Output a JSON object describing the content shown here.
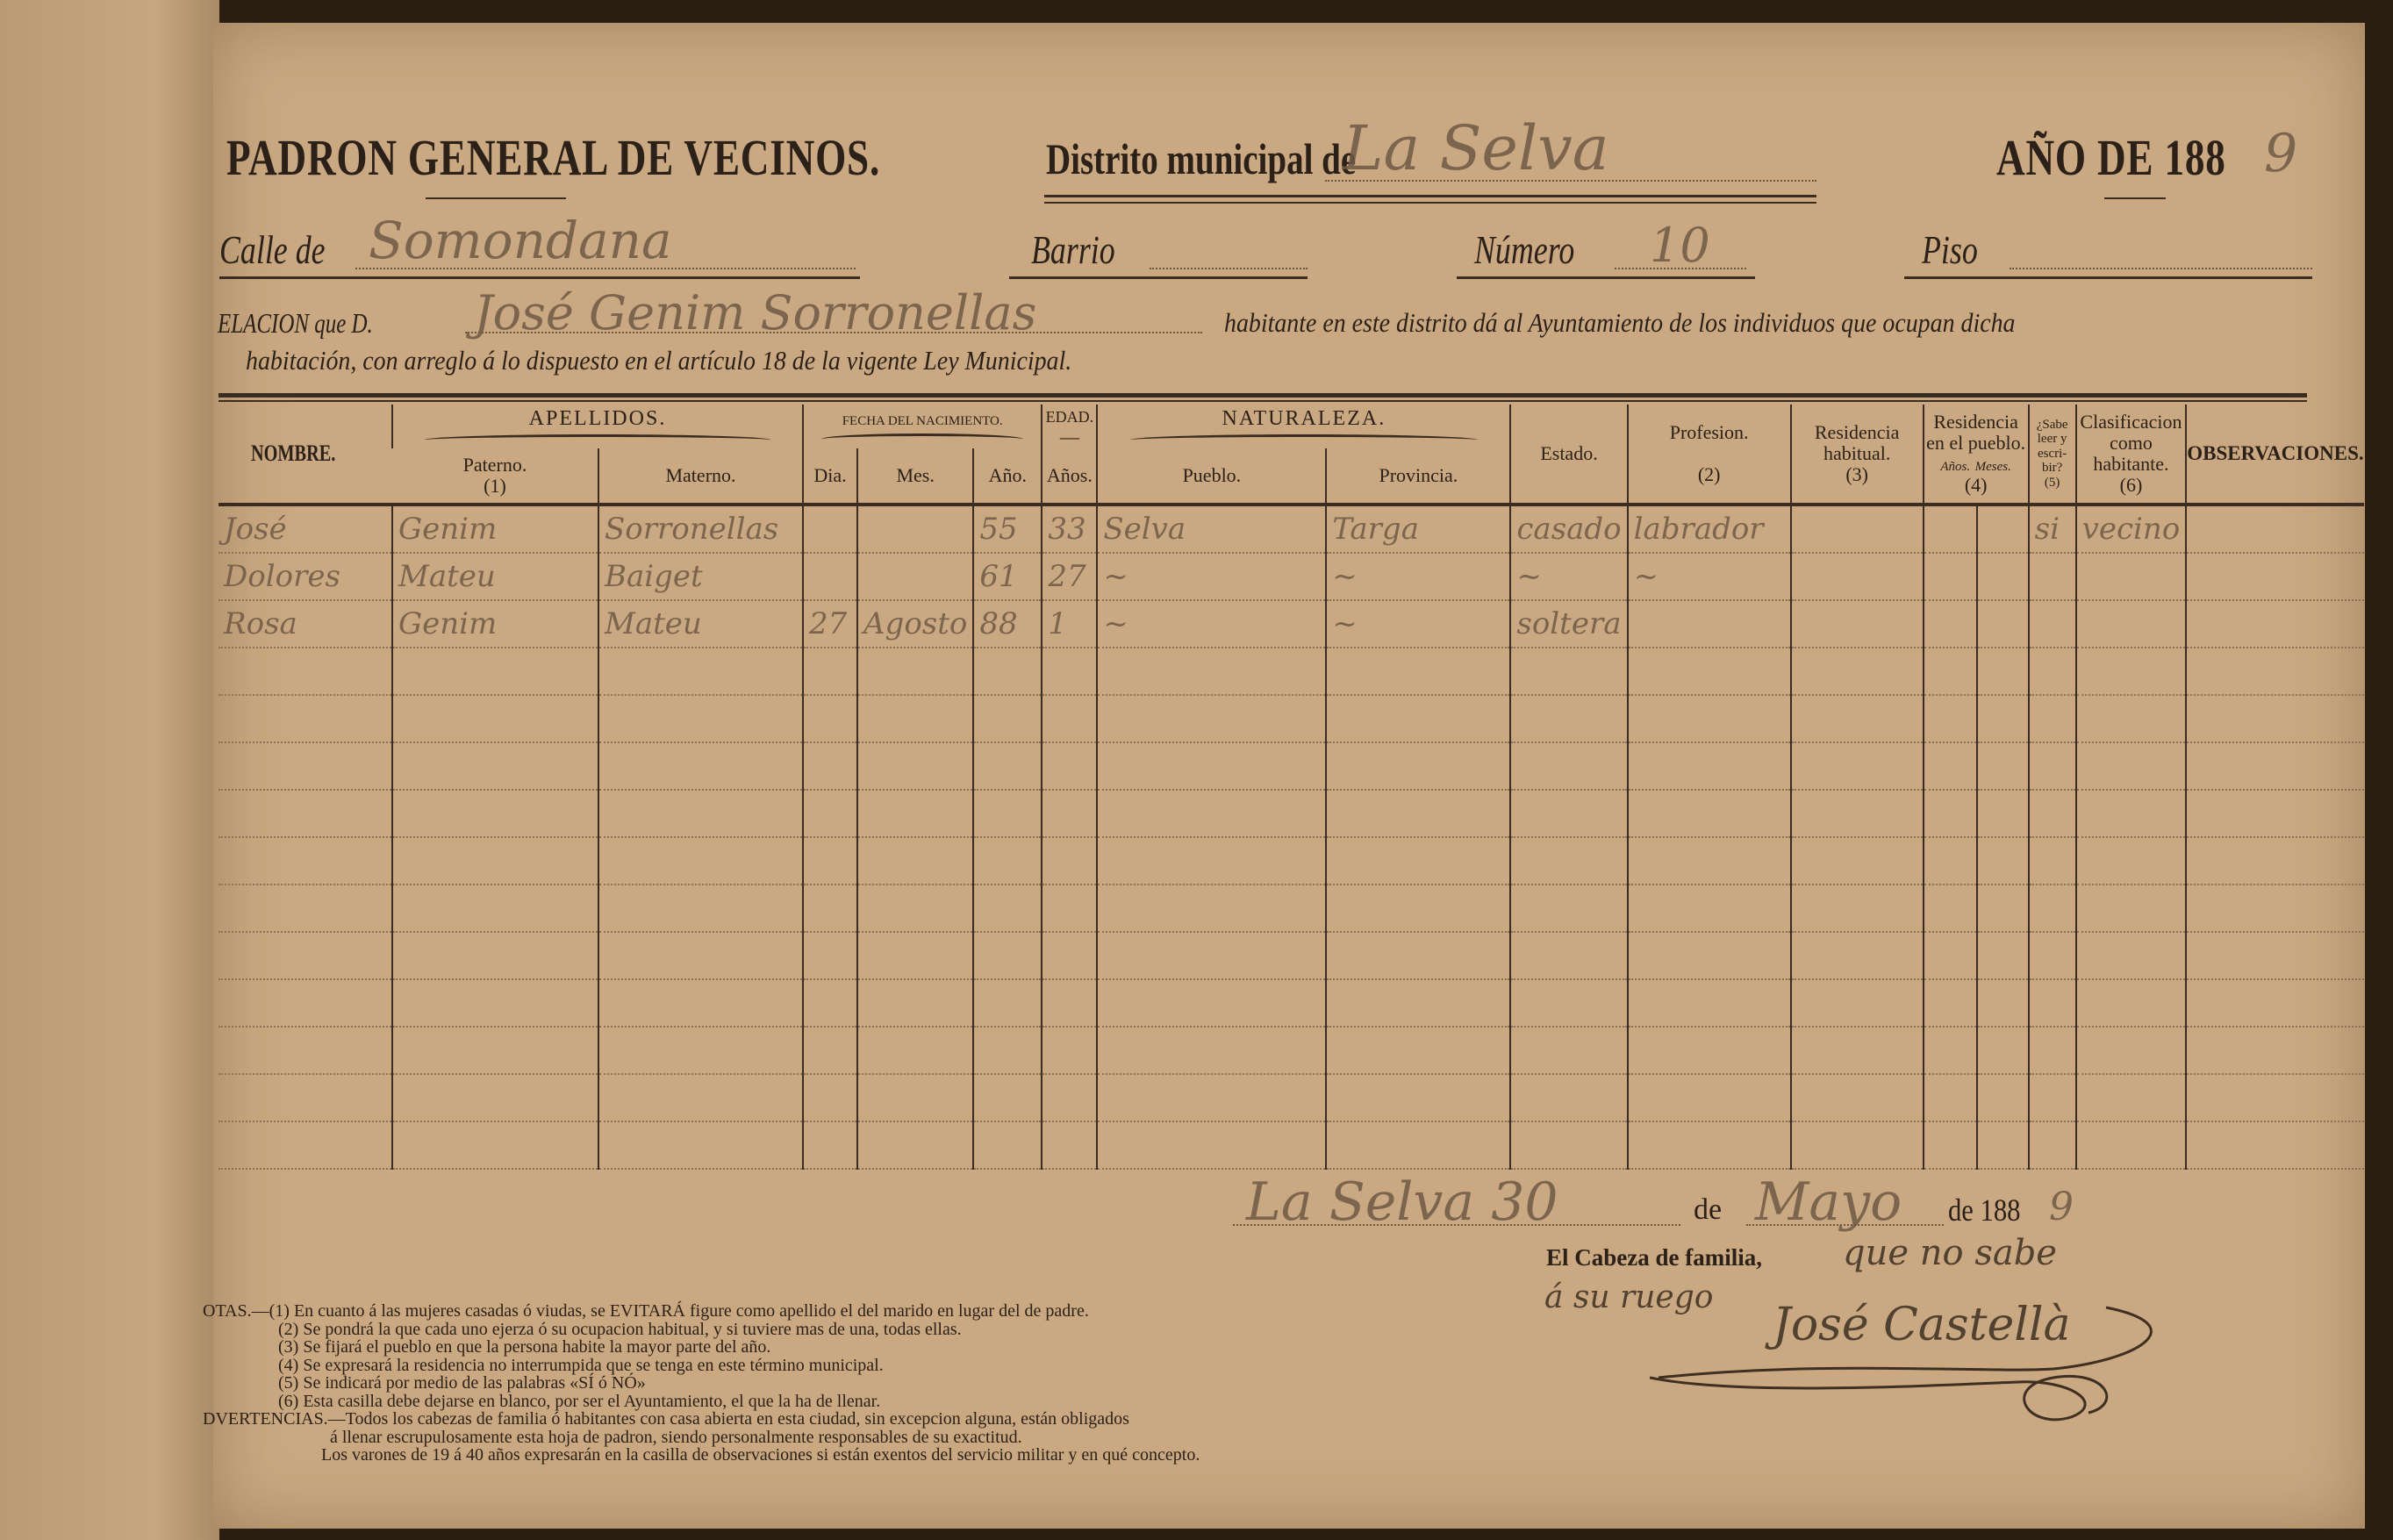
{
  "header": {
    "title": "PADRON GENERAL DE VECINOS.",
    "district_label": "Distrito municipal de",
    "district_value": "La Selva",
    "year_label": "AÑO DE 188",
    "year_value": "9"
  },
  "address": {
    "street_label": "Calle de",
    "street_value": "Somondana",
    "barrio_label": "Barrio",
    "barrio_value": "",
    "number_label": "Número",
    "number_value": "10",
    "piso_label": "Piso",
    "piso_value": ""
  },
  "relation": {
    "prefix": "ELACION que D.",
    "declarant": "José Genim Sorronellas",
    "line1_rest": "habitante en este distrito dá al Ayuntamiento de los individuos que ocupan dicha",
    "line2": "habitación, con arreglo á lo dispuesto en el artículo 18 de la vigente Ley Municipal."
  },
  "table": {
    "groups": {
      "apellidos": "APELLIDOS.",
      "fecha": "FECHA DEL NACIMIENTO.",
      "edad": "EDAD.",
      "edad_dash": "—",
      "naturaleza": "NATURALEZA."
    },
    "columns": {
      "nombre": "NOMBRE.",
      "paterno": "Paterno.",
      "paterno_note": "(1)",
      "materno": "Materno.",
      "dia": "Dia.",
      "mes": "Mes.",
      "anio": "Año.",
      "anos": "Años.",
      "pueblo": "Pueblo.",
      "provincia": "Provincia.",
      "estado": "Estado.",
      "profesion": "Profesion.",
      "profesion_note": "(2)",
      "residencia_habitual": "Residencia habitual.",
      "residencia_habitual_note": "(3)",
      "residencia_pueblo": "Residencia en el pueblo.",
      "res_anos": "Años.",
      "res_meses": "Meses.",
      "residencia_pueblo_note": "(4)",
      "sabe_leer": "¿Sabe leer y escri-bir?",
      "sabe_leer_note": "(5)",
      "clasificacion": "Clasificacion como habitante.",
      "clasificacion_note": "(6)",
      "observaciones": "OBSERVACIONES."
    },
    "rows": [
      [
        "José",
        "Genim",
        "Sorronellas",
        "",
        "",
        "55",
        "33",
        "Selva",
        "Targa",
        "casado",
        "labrador",
        "",
        "",
        "",
        "si",
        "vecino",
        ""
      ],
      [
        "Dolores",
        "Mateu",
        "Baiget",
        "",
        "",
        "61",
        "27",
        "~",
        "~",
        "~",
        "~",
        "",
        "",
        "",
        "",
        "",
        ""
      ],
      [
        "Rosa",
        "Genim",
        "Mateu",
        "27",
        "Agosto",
        "88",
        "1",
        "~",
        "~",
        "soltera",
        "",
        "",
        "",
        "",
        "",
        "",
        ""
      ]
    ],
    "blank_rows": 11
  },
  "date_line": {
    "place_day": "La Selva 30",
    "de1": "de",
    "month": "Mayo",
    "de2": "de 188",
    "year_digit": "9"
  },
  "signature": {
    "label": "El Cabeza de familia,",
    "note_line1": "que no sabe",
    "note_line2": "á su ruego",
    "name": "José Castellà"
  },
  "notes": {
    "lines": [
      "OTAS.—(1) En cuanto á las mujeres casadas ó viudas, se EVITARÁ figure como apellido el del marido en lugar del de padre.",
      "(2) Se pondrá la que cada uno ejerza ó su ocupacion habitual, y si tuviere mas de una, todas ellas.",
      "(3) Se fijará el pueblo en que la persona habite la mayor parte del año.",
      "(4) Se expresará la residencia no interrumpida que se tenga en este término municipal.",
      "(5) Se indicará por medio de las palabras «SÍ ó NÓ»",
      "(6) Esta casilla debe dejarse en blanco, por ser el Ayuntamiento, el que la ha de llenar."
    ],
    "warnings": [
      "DVERTENCIAS.—Todos los cabezas de familia ó habitantes con casa abierta en esta ciudad, sin excepcion alguna, están obligados",
      "á llenar escrupulosamente esta hoja de padron, siendo personalmente responsables de su exactitud.",
      "Los varones de 19 á 40 años expresarán en la casilla de observaciones si están exentos del servicio militar y en qué concepto."
    ]
  },
  "colors": {
    "paper": "#caa982",
    "ink": "#2b2118",
    "handwriting": "#6e5a46",
    "background": "#2a1d12"
  }
}
